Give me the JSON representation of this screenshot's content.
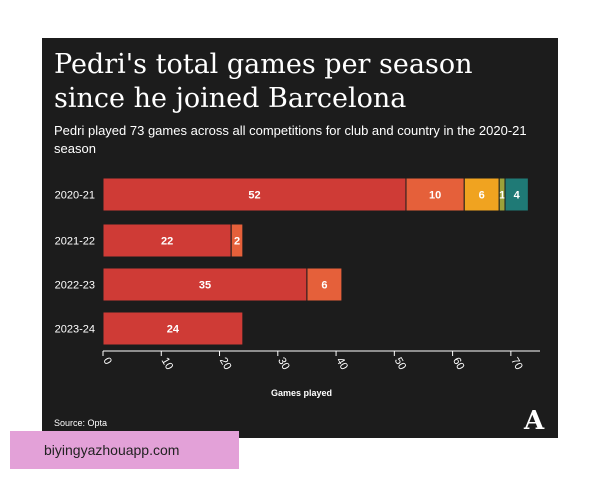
{
  "page": {
    "title": "Pedri's total games per season since he joined Barcelona",
    "subtitle": "Pedri played 73 games across all competitions for club and country in the 2020-21 season",
    "source": "Source: Opta",
    "logo": "A",
    "watermark": "biyingyazhouapp.com"
  },
  "colors": {
    "background": "#1c1c1c",
    "segments": [
      "#cf3b36",
      "#e5603a",
      "#f0a320",
      "#9aa13a",
      "#1f7a76"
    ],
    "axis": "#ffffff"
  },
  "chart_data": {
    "type": "bar",
    "orientation": "horizontal",
    "stacked": true,
    "categories": [
      "2020-21",
      "2021-22",
      "2022-23",
      "2023-24"
    ],
    "series": [
      {
        "values": [
          52,
          22,
          35,
          24
        ]
      },
      {
        "values": [
          10,
          2,
          6,
          null
        ]
      },
      {
        "values": [
          6,
          null,
          null,
          null
        ]
      },
      {
        "values": [
          1,
          null,
          null,
          null
        ]
      },
      {
        "values": [
          4,
          null,
          null,
          null
        ]
      }
    ],
    "xlabel": "Games played",
    "xlim": [
      0,
      75
    ],
    "xticks": [
      0,
      10,
      20,
      30,
      40,
      50,
      60,
      70
    ],
    "grid": false,
    "legend": "none"
  }
}
